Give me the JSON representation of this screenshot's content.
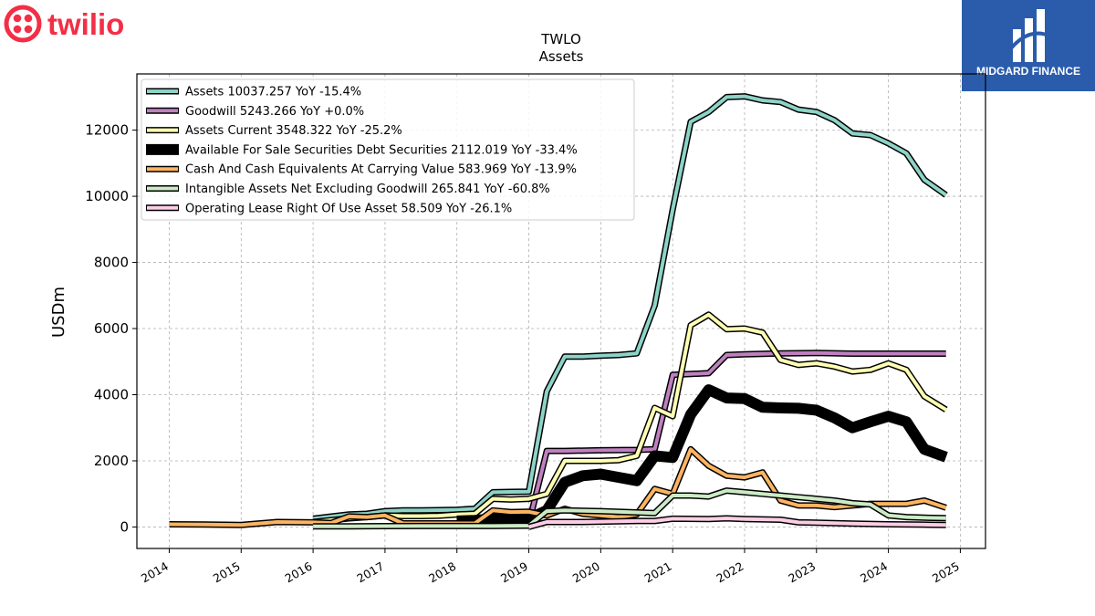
{
  "brand": {
    "left_logo_text": "twilio",
    "right_logo_text": "MIDGARD FINANCE",
    "twilio_red": "#f22f46",
    "midgard_blue": "#2a5cab"
  },
  "chart_data": {
    "type": "line",
    "title": "TWLO",
    "subtitle": "Assets",
    "ylabel": "USDm",
    "xlabel": "",
    "ylim": [
      -650,
      13700
    ],
    "xlim": [
      2013.55,
      2025.35
    ],
    "yticks": [
      0,
      2000,
      4000,
      6000,
      8000,
      10000,
      12000
    ],
    "xticks": [
      2014,
      2015,
      2016,
      2017,
      2018,
      2019,
      2020,
      2021,
      2022,
      2023,
      2024,
      2025
    ],
    "grid": true,
    "legend_position": "upper-left",
    "series": [
      {
        "name": "Assets",
        "legend": "Assets  10037.257 YoY -15.4%",
        "color": "#8dd3c7",
        "width": 4,
        "points": [
          [
            2016.0,
            250
          ],
          [
            2016.5,
            380
          ],
          [
            2016.75,
            400
          ],
          [
            2017.0,
            480
          ],
          [
            2017.25,
            500
          ],
          [
            2017.5,
            500
          ],
          [
            2017.75,
            510
          ],
          [
            2018.0,
            520
          ],
          [
            2018.25,
            550
          ],
          [
            2018.5,
            1050
          ],
          [
            2018.75,
            1060
          ],
          [
            2019.0,
            1070
          ],
          [
            2019.25,
            4100
          ],
          [
            2019.5,
            5150
          ],
          [
            2019.75,
            5150
          ],
          [
            2020.0,
            5180
          ],
          [
            2020.25,
            5200
          ],
          [
            2020.5,
            5250
          ],
          [
            2020.75,
            6700
          ],
          [
            2021.0,
            9600
          ],
          [
            2021.25,
            12250
          ],
          [
            2021.5,
            12550
          ],
          [
            2021.75,
            13000
          ],
          [
            2022.0,
            13020
          ],
          [
            2022.25,
            12900
          ],
          [
            2022.5,
            12850
          ],
          [
            2022.75,
            12620
          ],
          [
            2023.0,
            12550
          ],
          [
            2023.25,
            12300
          ],
          [
            2023.5,
            11900
          ],
          [
            2023.75,
            11850
          ],
          [
            2024.0,
            11600
          ],
          [
            2024.25,
            11300
          ],
          [
            2024.5,
            10500
          ],
          [
            2024.8,
            10037
          ]
        ]
      },
      {
        "name": "Goodwill",
        "legend": "Goodwill  5243.266 YoY +0.0%",
        "color": "#bf80c0",
        "width": 4,
        "points": [
          [
            2019.0,
            100
          ],
          [
            2019.25,
            2300
          ],
          [
            2019.5,
            2300
          ],
          [
            2020.0,
            2320
          ],
          [
            2020.5,
            2330
          ],
          [
            2020.75,
            2350
          ],
          [
            2021.0,
            4600
          ],
          [
            2021.5,
            4650
          ],
          [
            2021.75,
            5200
          ],
          [
            2022.0,
            5220
          ],
          [
            2022.5,
            5250
          ],
          [
            2023.0,
            5260
          ],
          [
            2023.5,
            5243
          ],
          [
            2024.8,
            5243
          ]
        ]
      },
      {
        "name": "Assets Current",
        "legend": "Assets Current  3548.322 YoY -25.2%",
        "color": "#ffffb3",
        "width": 4,
        "points": [
          [
            2016.0,
            150
          ],
          [
            2016.5,
            260
          ],
          [
            2016.75,
            300
          ],
          [
            2017.0,
            350
          ],
          [
            2017.25,
            330
          ],
          [
            2017.5,
            330
          ],
          [
            2017.75,
            340
          ],
          [
            2018.0,
            380
          ],
          [
            2018.25,
            400
          ],
          [
            2018.5,
            850
          ],
          [
            2018.75,
            830
          ],
          [
            2019.0,
            850
          ],
          [
            2019.25,
            1000
          ],
          [
            2019.5,
            2000
          ],
          [
            2019.75,
            2000
          ],
          [
            2020.0,
            2000
          ],
          [
            2020.25,
            2020
          ],
          [
            2020.5,
            2150
          ],
          [
            2020.75,
            3600
          ],
          [
            2021.0,
            3350
          ],
          [
            2021.25,
            6100
          ],
          [
            2021.5,
            6420
          ],
          [
            2021.75,
            5980
          ],
          [
            2022.0,
            6000
          ],
          [
            2022.25,
            5880
          ],
          [
            2022.5,
            5050
          ],
          [
            2022.75,
            4900
          ],
          [
            2023.0,
            4950
          ],
          [
            2023.25,
            4850
          ],
          [
            2023.5,
            4700
          ],
          [
            2023.75,
            4750
          ],
          [
            2024.0,
            4950
          ],
          [
            2024.25,
            4750
          ],
          [
            2024.5,
            3950
          ],
          [
            2024.8,
            3548
          ]
        ]
      },
      {
        "name": "Available For Sale Securities Debt Securities",
        "legend": "Available For Sale Securities Debt Securities  2112.019 YoY -33.4%",
        "color": "#000000",
        "width": 9,
        "points": [
          [
            2018.0,
            180
          ],
          [
            2018.25,
            200
          ],
          [
            2018.5,
            250
          ],
          [
            2018.75,
            250
          ],
          [
            2019.0,
            250
          ],
          [
            2019.25,
            500
          ],
          [
            2019.5,
            1350
          ],
          [
            2019.75,
            1550
          ],
          [
            2020.0,
            1600
          ],
          [
            2020.25,
            1500
          ],
          [
            2020.5,
            1400
          ],
          [
            2020.75,
            2150
          ],
          [
            2021.0,
            2100
          ],
          [
            2021.25,
            3400
          ],
          [
            2021.5,
            4150
          ],
          [
            2021.75,
            3900
          ],
          [
            2022.0,
            3880
          ],
          [
            2022.25,
            3620
          ],
          [
            2022.5,
            3600
          ],
          [
            2022.75,
            3590
          ],
          [
            2023.0,
            3530
          ],
          [
            2023.25,
            3300
          ],
          [
            2023.5,
            3000
          ],
          [
            2023.75,
            3180
          ],
          [
            2024.0,
            3350
          ],
          [
            2024.25,
            3180
          ],
          [
            2024.5,
            2350
          ],
          [
            2024.8,
            2112
          ]
        ]
      },
      {
        "name": "Cash And Cash Equivalents At Carrying Value",
        "legend": "Cash And Cash Equivalents At Carrying Value  583.969 YoY -13.9%",
        "color": "#fdb462",
        "width": 4,
        "points": [
          [
            2014.0,
            80
          ],
          [
            2014.5,
            75
          ],
          [
            2015.0,
            60
          ],
          [
            2015.5,
            150
          ],
          [
            2016.0,
            140
          ],
          [
            2016.25,
            120
          ],
          [
            2016.5,
            320
          ],
          [
            2016.75,
            300
          ],
          [
            2017.0,
            350
          ],
          [
            2017.25,
            110
          ],
          [
            2017.5,
            110
          ],
          [
            2017.75,
            110
          ],
          [
            2018.0,
            110
          ],
          [
            2018.25,
            110
          ],
          [
            2018.5,
            500
          ],
          [
            2018.75,
            450
          ],
          [
            2019.0,
            460
          ],
          [
            2019.25,
            350
          ],
          [
            2019.5,
            550
          ],
          [
            2019.75,
            400
          ],
          [
            2020.0,
            350
          ],
          [
            2020.25,
            300
          ],
          [
            2020.5,
            380
          ],
          [
            2020.75,
            1150
          ],
          [
            2021.0,
            1000
          ],
          [
            2021.25,
            2350
          ],
          [
            2021.5,
            1850
          ],
          [
            2021.75,
            1550
          ],
          [
            2022.0,
            1500
          ],
          [
            2022.25,
            1650
          ],
          [
            2022.5,
            800
          ],
          [
            2022.75,
            650
          ],
          [
            2023.0,
            650
          ],
          [
            2023.25,
            600
          ],
          [
            2023.5,
            650
          ],
          [
            2023.75,
            700
          ],
          [
            2024.0,
            700
          ],
          [
            2024.25,
            700
          ],
          [
            2024.5,
            800
          ],
          [
            2024.8,
            584
          ]
        ]
      },
      {
        "name": "Intangible Assets Net Excluding Goodwill",
        "legend": "Intangible Assets Net Excluding Goodwill  265.841 YoY -60.8%",
        "color": "#ccebc5",
        "width": 4,
        "points": [
          [
            2016.0,
            20
          ],
          [
            2016.5,
            20
          ],
          [
            2017.0,
            25
          ],
          [
            2017.5,
            30
          ],
          [
            2018.0,
            30
          ],
          [
            2018.5,
            30
          ],
          [
            2019.0,
            40
          ],
          [
            2019.25,
            480
          ],
          [
            2019.5,
            500
          ],
          [
            2020.0,
            480
          ],
          [
            2020.5,
            440
          ],
          [
            2020.75,
            420
          ],
          [
            2021.0,
            950
          ],
          [
            2021.25,
            950
          ],
          [
            2021.5,
            920
          ],
          [
            2021.75,
            1100
          ],
          [
            2022.0,
            1050
          ],
          [
            2022.25,
            1000
          ],
          [
            2022.5,
            950
          ],
          [
            2022.75,
            900
          ],
          [
            2023.0,
            850
          ],
          [
            2023.25,
            800
          ],
          [
            2023.5,
            720
          ],
          [
            2023.75,
            680
          ],
          [
            2024.0,
            350
          ],
          [
            2024.25,
            300
          ],
          [
            2024.5,
            280
          ],
          [
            2024.8,
            266
          ]
        ]
      },
      {
        "name": "Operating Lease Right Of Use Asset",
        "legend": "Operating Lease Right Of Use Asset  58.509 YoY -26.1%",
        "color": "#fccde5",
        "width": 4,
        "points": [
          [
            2019.0,
            0
          ],
          [
            2019.25,
            150
          ],
          [
            2019.75,
            150
          ],
          [
            2020.0,
            160
          ],
          [
            2020.5,
            180
          ],
          [
            2020.75,
            180
          ],
          [
            2021.0,
            250
          ],
          [
            2021.5,
            240
          ],
          [
            2021.75,
            260
          ],
          [
            2022.0,
            240
          ],
          [
            2022.5,
            220
          ],
          [
            2022.75,
            140
          ],
          [
            2023.0,
            130
          ],
          [
            2023.5,
            100
          ],
          [
            2024.0,
            80
          ],
          [
            2024.5,
            70
          ],
          [
            2024.8,
            59
          ]
        ]
      }
    ]
  }
}
